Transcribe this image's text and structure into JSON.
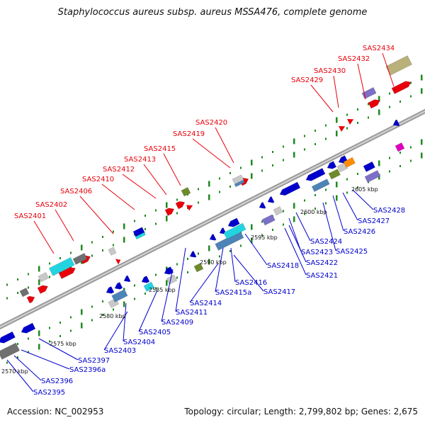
{
  "title": "Staphylococcus aureus subsp. aureus MSSA476, complete genome",
  "footer": {
    "accession": "Accession: NC_002953",
    "summary": "Topology: circular; Length: 2,799,802 bp; Genes: 2,675"
  },
  "colors": {
    "red": "#e8000b",
    "blue": "#0000cc",
    "cyan": "#22d4e0",
    "grey": "#707070",
    "light_grey": "#c8c8c8",
    "steel": "#4d84b8",
    "olive": "#6e8a2a",
    "khaki": "#b9b07a",
    "purple": "#7b6fc8",
    "orange": "#ff8c00",
    "magenta": "#e000c0"
  },
  "scale_labels": [
    "2570 kbp",
    "2575 kbp",
    "2580 kbp",
    "2585 kbp",
    "2590 kbp",
    "2595 kbp",
    "2600 kbp",
    "2605 kbp"
  ],
  "top_strand_labels": [
    "SAS2401",
    "SAS2402",
    "SAS2406",
    "SAS2410",
    "SAS2412",
    "SAS2413",
    "SAS2415",
    "SAS2419",
    "SAS2420",
    "SAS2429",
    "SAS2430",
    "SAS2432",
    "SAS2434"
  ],
  "bottom_strand_labels": [
    "SAS2395",
    "SAS2396",
    "SAS2396a",
    "SAS2397",
    "SAS2403",
    "SAS2404",
    "SAS2405",
    "SAS2409",
    "SAS2411",
    "SAS2414",
    "SAS2415a",
    "SAS2416",
    "SAS2417",
    "SAS2418",
    "SAS2421",
    "SAS2422",
    "SAS2423",
    "SAS2424",
    "SAS2425",
    "SAS2426",
    "SAS2427",
    "SAS2428"
  ]
}
